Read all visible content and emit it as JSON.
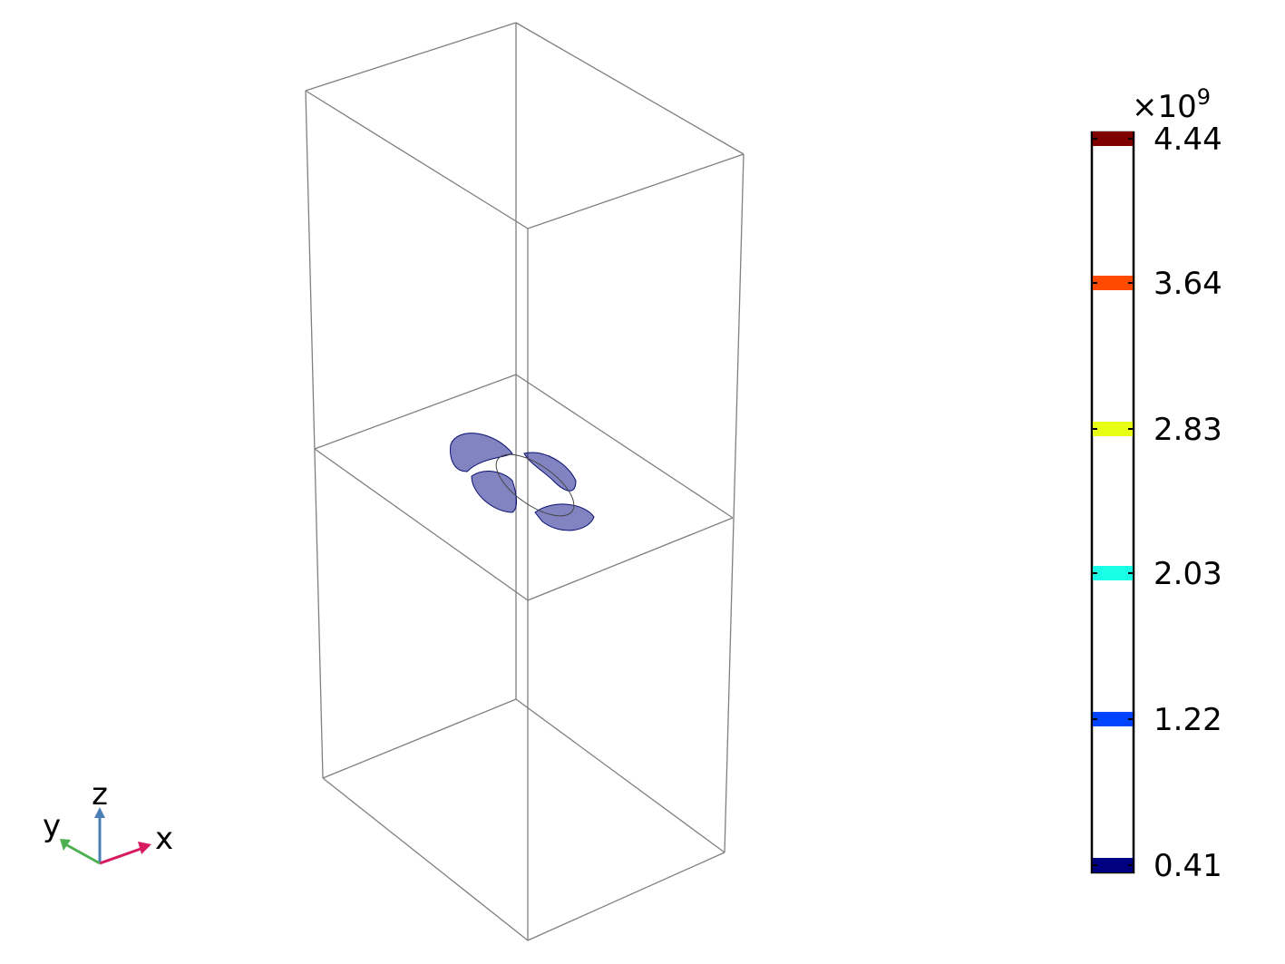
{
  "axes": {
    "x": "x",
    "y": "y",
    "z": "z"
  },
  "colorbar": {
    "multiplier": "×10",
    "exponent": "9",
    "levels": [
      {
        "value": 4.44,
        "color": "#800000"
      },
      {
        "value": 3.64,
        "color": "#ff4a00"
      },
      {
        "value": 2.83,
        "color": "#e6ff12"
      },
      {
        "value": 2.03,
        "color": "#19ffe6"
      },
      {
        "value": 1.22,
        "color": "#0044ff"
      },
      {
        "value": 0.41,
        "color": "#000080"
      }
    ]
  }
}
